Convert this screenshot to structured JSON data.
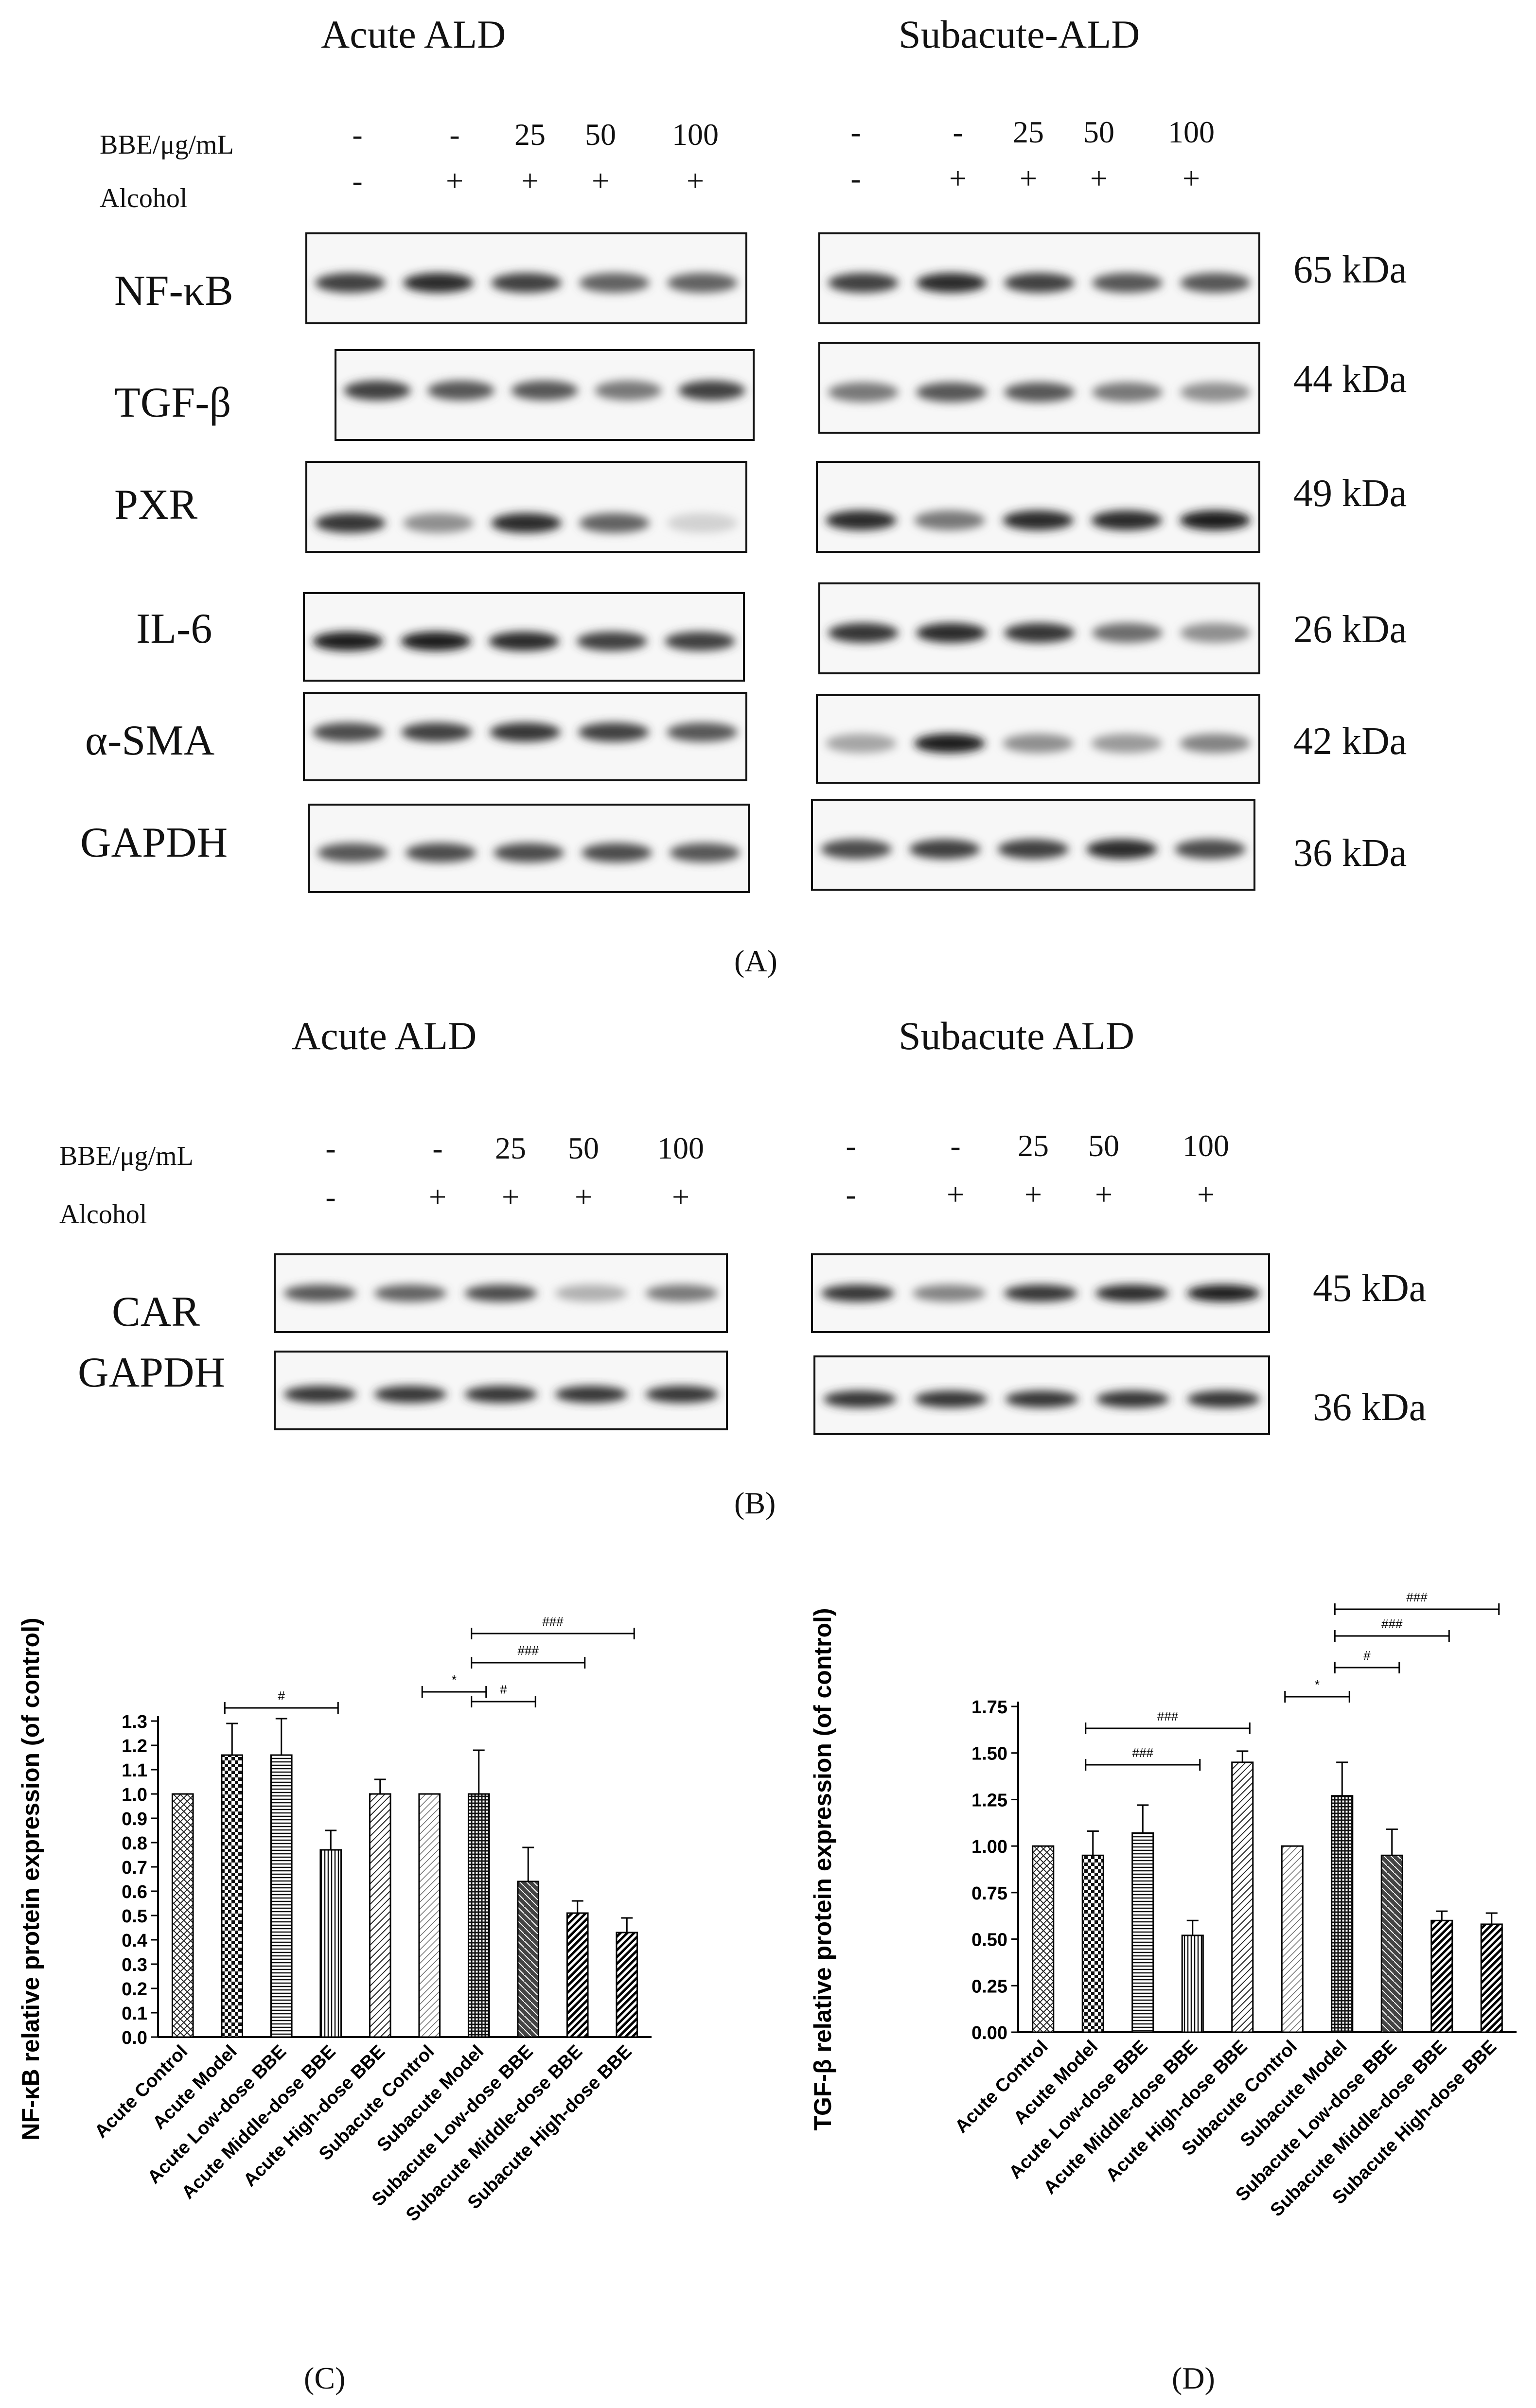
{
  "panelA": {
    "left_title": "Acute ALD",
    "right_title": "Subacute-ALD",
    "bbe_label": "BBE/μg/mL",
    "alcohol_label": "Alcohol",
    "bbe_values": [
      "-",
      "-",
      "25",
      "50",
      "100"
    ],
    "alcohol_values": [
      "-",
      "+",
      "+",
      "+",
      "+"
    ],
    "proteins": [
      "NF-κB",
      "TGF-β",
      "PXR",
      "IL-6",
      "α-SMA",
      "GAPDH"
    ],
    "kda": [
      "65 kDa",
      "44 kDa",
      "49 kDa",
      "26 kDa",
      "42 kDa",
      "36 kDa"
    ],
    "label": "(A)"
  },
  "panelB": {
    "left_title": "Acute ALD",
    "right_title": "Subacute ALD",
    "bbe_label": "BBE/μg/mL",
    "alcohol_label": "Alcohol",
    "bbe_values": [
      "-",
      "-",
      "25",
      "50",
      "100"
    ],
    "alcohol_values": [
      "-",
      "+",
      "+",
      "+",
      "+"
    ],
    "proteins": [
      "CAR",
      "GAPDH"
    ],
    "kda": [
      "45 kDa",
      "36 kDa"
    ],
    "label": "(B)"
  },
  "chart_data": [
    {
      "type": "bar",
      "panel": "(C)",
      "ylabel": "NF-κB relative protein expression (of control)",
      "categories": [
        "Acute Control",
        "Acute Model",
        "Acute Low-dose BBE",
        "Acute Middle-dose BBE",
        "Acute High-dose BBE",
        "Subacute Control",
        "Subacute Model",
        "Subacute Low-dose BBE",
        "Subacute Middle-dose BBE",
        "Subacute High-dose BBE"
      ],
      "values": [
        1.0,
        1.16,
        1.16,
        0.77,
        1.0,
        1.0,
        1.0,
        0.64,
        0.51,
        0.43
      ],
      "errors": [
        0,
        0.13,
        0.15,
        0.08,
        0.06,
        0,
        0.18,
        0.14,
        0.05,
        0.06
      ],
      "ylim": [
        0,
        1.3
      ],
      "yticks": [
        "0.0",
        "0.1",
        "0.2",
        "0.3",
        "0.4",
        "0.5",
        "0.6",
        "0.7",
        "0.8",
        "0.9",
        "1.0",
        "1.1",
        "1.2",
        "1.3"
      ],
      "significance": [
        {
          "from": 1,
          "to": 3,
          "label": "#"
        },
        {
          "from": 5,
          "to": 6,
          "label": "*"
        },
        {
          "from": 6,
          "to": 7,
          "label": "#"
        },
        {
          "from": 6,
          "to": 8,
          "label": "###"
        },
        {
          "from": 6,
          "to": 9,
          "label": "###"
        }
      ]
    },
    {
      "type": "bar",
      "panel": "(D)",
      "ylabel": "TGF-β relative protein expression (of control)",
      "categories": [
        "Acute Control",
        "Acute Model",
        "Acute Low-dose BBE",
        "Acute Middle-dose BBE",
        "Acute High-dose BBE",
        "Subacute Control",
        "Subacute Model",
        "Subacute Low-dose BBE",
        "Subacute Middle-dose BBE",
        "Subacute High-dose BBE"
      ],
      "values": [
        1.0,
        0.95,
        1.07,
        0.52,
        1.45,
        1.0,
        1.27,
        0.95,
        0.6,
        0.58
      ],
      "errors": [
        0,
        0.13,
        0.15,
        0.08,
        0.06,
        0,
        0.18,
        0.14,
        0.05,
        0.06
      ],
      "ylim": [
        0,
        1.75
      ],
      "yticks": [
        "0.00",
        "0.25",
        "0.50",
        "0.75",
        "1.00",
        "1.25",
        "1.50",
        "1.75"
      ],
      "significance": [
        {
          "from": 1,
          "to": 3,
          "label": "###"
        },
        {
          "from": 1,
          "to": 4,
          "label": "###"
        },
        {
          "from": 5,
          "to": 6,
          "label": "*"
        },
        {
          "from": 6,
          "to": 7,
          "label": "#"
        },
        {
          "from": 6,
          "to": 8,
          "label": "###"
        },
        {
          "from": 6,
          "to": 9,
          "label": "###"
        }
      ]
    }
  ]
}
